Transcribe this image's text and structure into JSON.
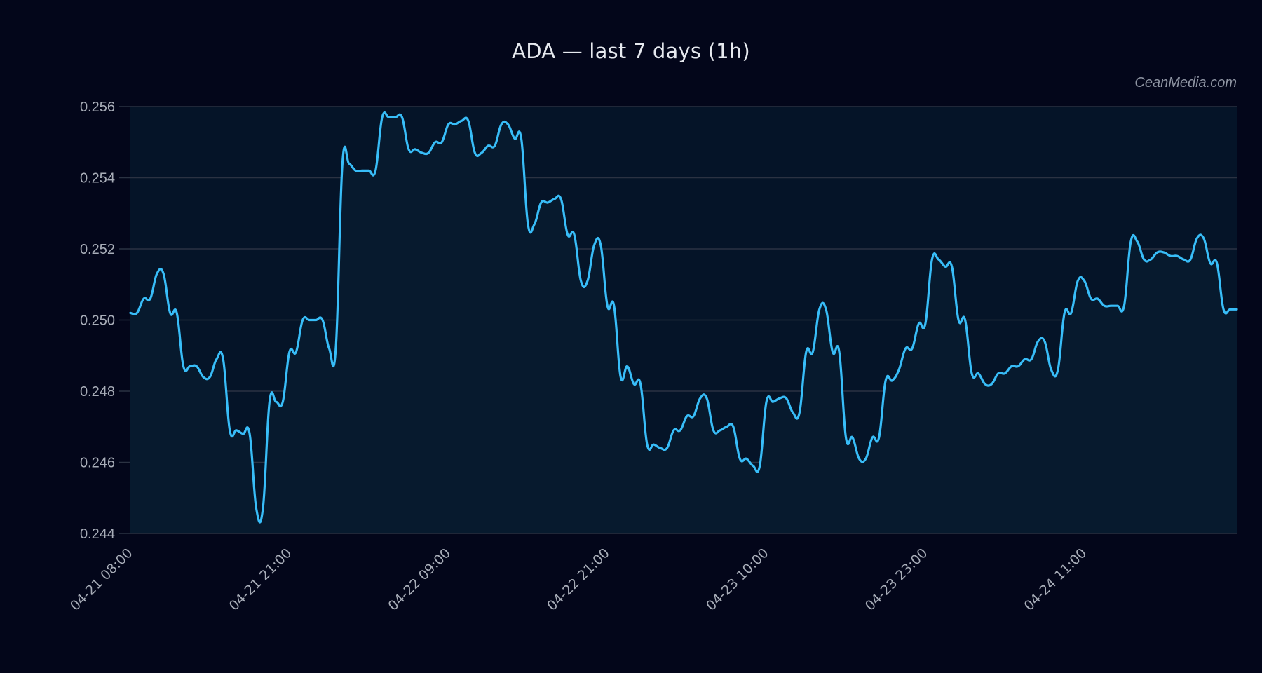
{
  "title": "ADA — last 7 days (1h)",
  "watermark": "CeanMedia.com",
  "colors": {
    "background": "#03061a",
    "plot_fill": "#051428",
    "area_fill": "#071a2e",
    "line": "#38bdf8",
    "grid": "#2b3242",
    "tick_text": "#a8adb8"
  },
  "chart_data": {
    "type": "area",
    "title": "ADA — last 7 days (1h)",
    "xlabel": "",
    "ylabel": "",
    "ylim": [
      0.244,
      0.256
    ],
    "grid": true,
    "legend": null,
    "yticks": [
      "0.256",
      "0.254",
      "0.252",
      "0.250",
      "0.248",
      "0.246",
      "0.244"
    ],
    "xticks": [
      {
        "label": "04-21 08:00",
        "index": 0
      },
      {
        "label": "04-21 21:00",
        "index": 24
      },
      {
        "label": "04-22 09:00",
        "index": 48
      },
      {
        "label": "04-22 21:00",
        "index": 72
      },
      {
        "label": "04-23 10:00",
        "index": 96
      },
      {
        "label": "04-23 23:00",
        "index": 120
      },
      {
        "label": "04-24 11:00",
        "index": 144
      }
    ],
    "values": [
      0.2502,
      0.2502,
      0.2506,
      0.2506,
      0.2513,
      0.2513,
      0.2502,
      0.2502,
      0.2487,
      0.2487,
      0.2487,
      0.2484,
      0.2484,
      0.2489,
      0.2489,
      0.2469,
      0.2469,
      0.2468,
      0.2468,
      0.2447,
      0.2447,
      0.2477,
      0.2477,
      0.2477,
      0.2491,
      0.2491,
      0.25,
      0.25,
      0.25,
      0.25,
      0.2492,
      0.2492,
      0.2544,
      0.2544,
      0.2542,
      0.2542,
      0.2542,
      0.2542,
      0.2557,
      0.2557,
      0.2557,
      0.2557,
      0.2548,
      0.2548,
      0.2547,
      0.2547,
      0.255,
      0.255,
      0.2555,
      0.2555,
      0.2556,
      0.2556,
      0.2547,
      0.2547,
      0.2549,
      0.2549,
      0.2555,
      0.2555,
      0.2551,
      0.2551,
      0.2527,
      0.2527,
      0.2533,
      0.2533,
      0.2534,
      0.2534,
      0.2524,
      0.2524,
      0.2511,
      0.2511,
      0.2521,
      0.2521,
      0.2504,
      0.2504,
      0.2484,
      0.2487,
      0.2482,
      0.2482,
      0.2465,
      0.2465,
      0.2464,
      0.2464,
      0.2469,
      0.2469,
      0.2473,
      0.2473,
      0.2478,
      0.2478,
      0.2469,
      0.2469,
      0.247,
      0.247,
      0.2461,
      0.2461,
      0.2459,
      0.2459,
      0.2477,
      0.2477,
      0.2478,
      0.2478,
      0.2474,
      0.2474,
      0.2491,
      0.2491,
      0.2503,
      0.2503,
      0.2491,
      0.2491,
      0.2467,
      0.2467,
      0.2461,
      0.2461,
      0.2467,
      0.2467,
      0.2483,
      0.2483,
      0.2486,
      0.2492,
      0.2492,
      0.2499,
      0.2499,
      0.2517,
      0.2517,
      0.2515,
      0.2515,
      0.25,
      0.25,
      0.2485,
      0.2485,
      0.2482,
      0.2482,
      0.2485,
      0.2485,
      0.2487,
      0.2487,
      0.2489,
      0.2489,
      0.2494,
      0.2494,
      0.2486,
      0.2486,
      0.2502,
      0.2502,
      0.2511,
      0.2511,
      0.2506,
      0.2506,
      0.2504,
      0.2504,
      0.2504,
      0.2504,
      0.2522,
      0.2522,
      0.2517,
      0.2517,
      0.2519,
      0.2519,
      0.2518,
      0.2518,
      0.2517,
      0.2517,
      0.2523,
      0.2523,
      0.2516,
      0.2516,
      0.2503,
      0.2503,
      0.2503
    ]
  }
}
